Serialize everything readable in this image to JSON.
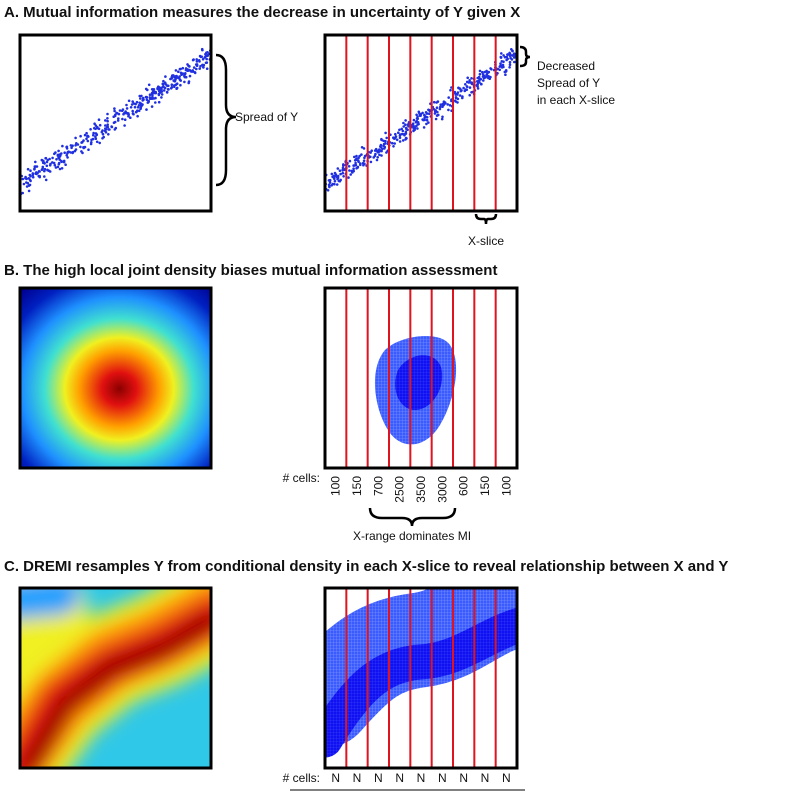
{
  "panel_a": {
    "title": "A. Mutual information measures the decrease in uncertainty of Y given X",
    "spread_label": "Spread of Y",
    "decreased_label": [
      "Decreased",
      "Spread of Y",
      "in each X-slice"
    ],
    "slice_label": "X-slice"
  },
  "panel_b": {
    "title": "B. The high local joint density biases mutual information assessment",
    "cells_label": "# cells:",
    "cell_counts": [
      100,
      150,
      700,
      2500,
      3500,
      3000,
      600,
      150,
      100
    ],
    "range_label": "X-range dominates MI"
  },
  "panel_c": {
    "title": "C. DREMI resamples Y from conditional density in each X-slice to reveal relationship between X and Y",
    "cells_label": "# cells:",
    "cell_counts": [
      "N",
      "N",
      "N",
      "N",
      "N",
      "N",
      "N",
      "N",
      "N"
    ]
  }
}
